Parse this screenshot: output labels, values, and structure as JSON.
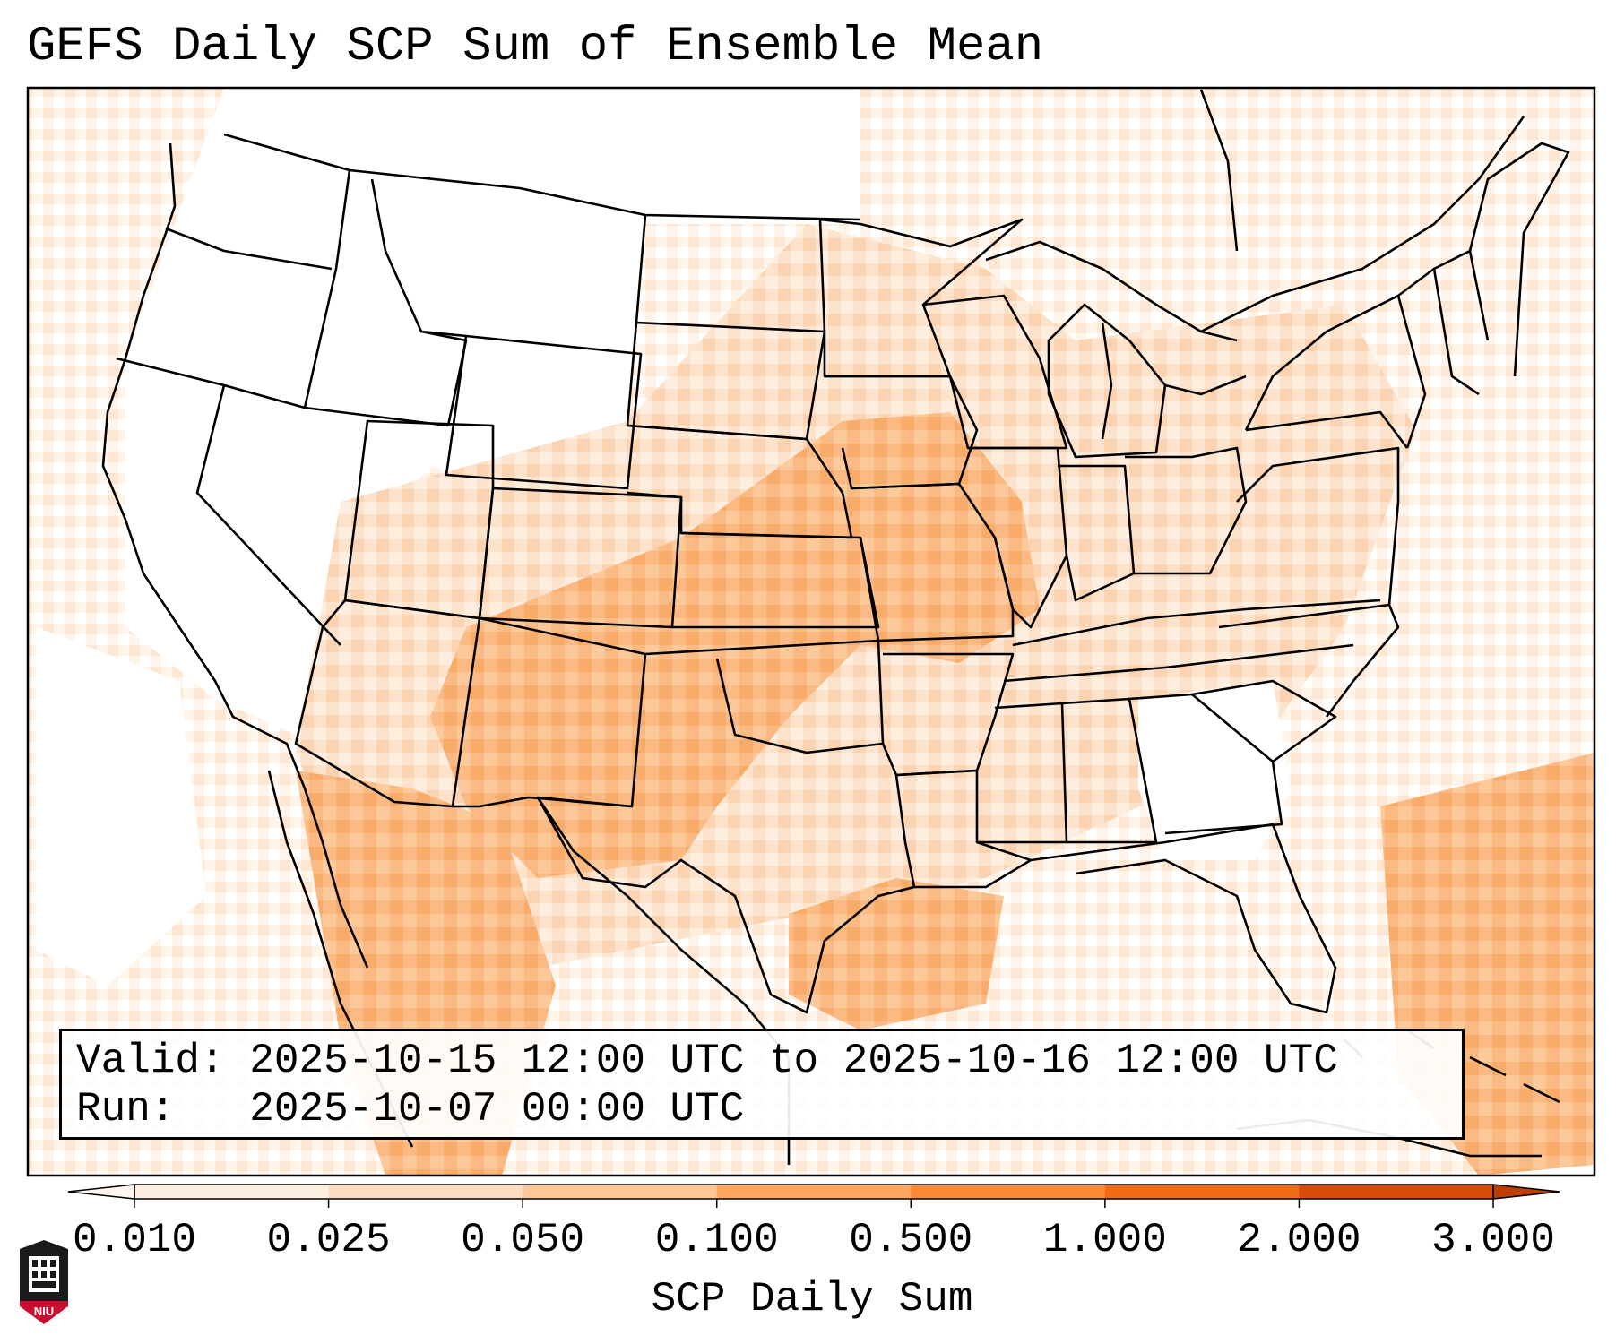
{
  "title": "GEFS Daily SCP Sum of Ensemble Mean",
  "info": {
    "valid_label": "Valid:",
    "valid_value": "2025-10-15 12:00 UTC to 2025-10-16 12:00 UTC",
    "run_label": "Run:",
    "run_value": "2025-10-07 00:00 UTC"
  },
  "colorbar": {
    "label": "SCP Daily Sum",
    "ticks": [
      "0.010",
      "0.025",
      "0.050",
      "0.100",
      "0.500",
      "1.000",
      "2.000",
      "3.000"
    ],
    "colors": [
      "#fdeee2",
      "#fddcc0",
      "#fdc79a",
      "#fda763",
      "#f98a33",
      "#ef6b14",
      "#d84a07"
    ],
    "extend": "both"
  },
  "map_colors": {
    "land_none": "#ffffff",
    "lvl1": "#fef2e8",
    "lvl2": "#fde2cb",
    "lvl3": "#fcd0aa",
    "lvl4": "#fbb57c",
    "lvl5": "#f99a4a"
  },
  "logo_text": "NIU"
}
